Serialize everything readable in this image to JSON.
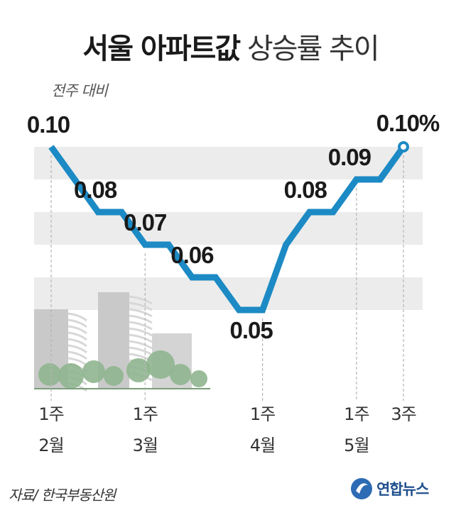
{
  "header": {
    "title_bold": "서울 아파트값",
    "title_light": "상승률 추이",
    "subtitle": "전주 대비"
  },
  "footer": {
    "source": "자료/ 한국부동산원",
    "logo": "연합뉴스"
  },
  "colors": {
    "line": "#1c8ac4",
    "band": "#ececec",
    "building": "#c9c9c9",
    "tree": "#8fb58f"
  },
  "chart_data": {
    "type": "line",
    "title": "서울 아파트값 상승률 추이",
    "subtitle": "전주 대비",
    "ylim": [
      0.04,
      0.11
    ],
    "ticks": [
      {
        "index": 0,
        "week": "1주",
        "month": "2월"
      },
      {
        "index": 4,
        "week": "1주",
        "month": "3월"
      },
      {
        "index": 9,
        "week": "1주",
        "month": "4월"
      },
      {
        "index": 13,
        "week": "1주",
        "month": "5월"
      },
      {
        "index": 15,
        "week": "3주",
        "month": ""
      }
    ],
    "values": [
      0.1,
      0.09,
      0.08,
      0.08,
      0.07,
      0.07,
      0.06,
      0.06,
      0.05,
      0.05,
      0.07,
      0.08,
      0.08,
      0.09,
      0.09,
      0.1
    ],
    "data_labels": [
      {
        "index": 0,
        "text": "0.10"
      },
      {
        "index": 2,
        "text": "0.08"
      },
      {
        "index": 4,
        "text": "0.07"
      },
      {
        "index": 6,
        "text": "0.06"
      },
      {
        "index": 9,
        "text": "0.05"
      },
      {
        "index": 11,
        "text": "0.08"
      },
      {
        "index": 13,
        "text": "0.09"
      },
      {
        "index": 15,
        "text": "0.10%"
      }
    ]
  }
}
